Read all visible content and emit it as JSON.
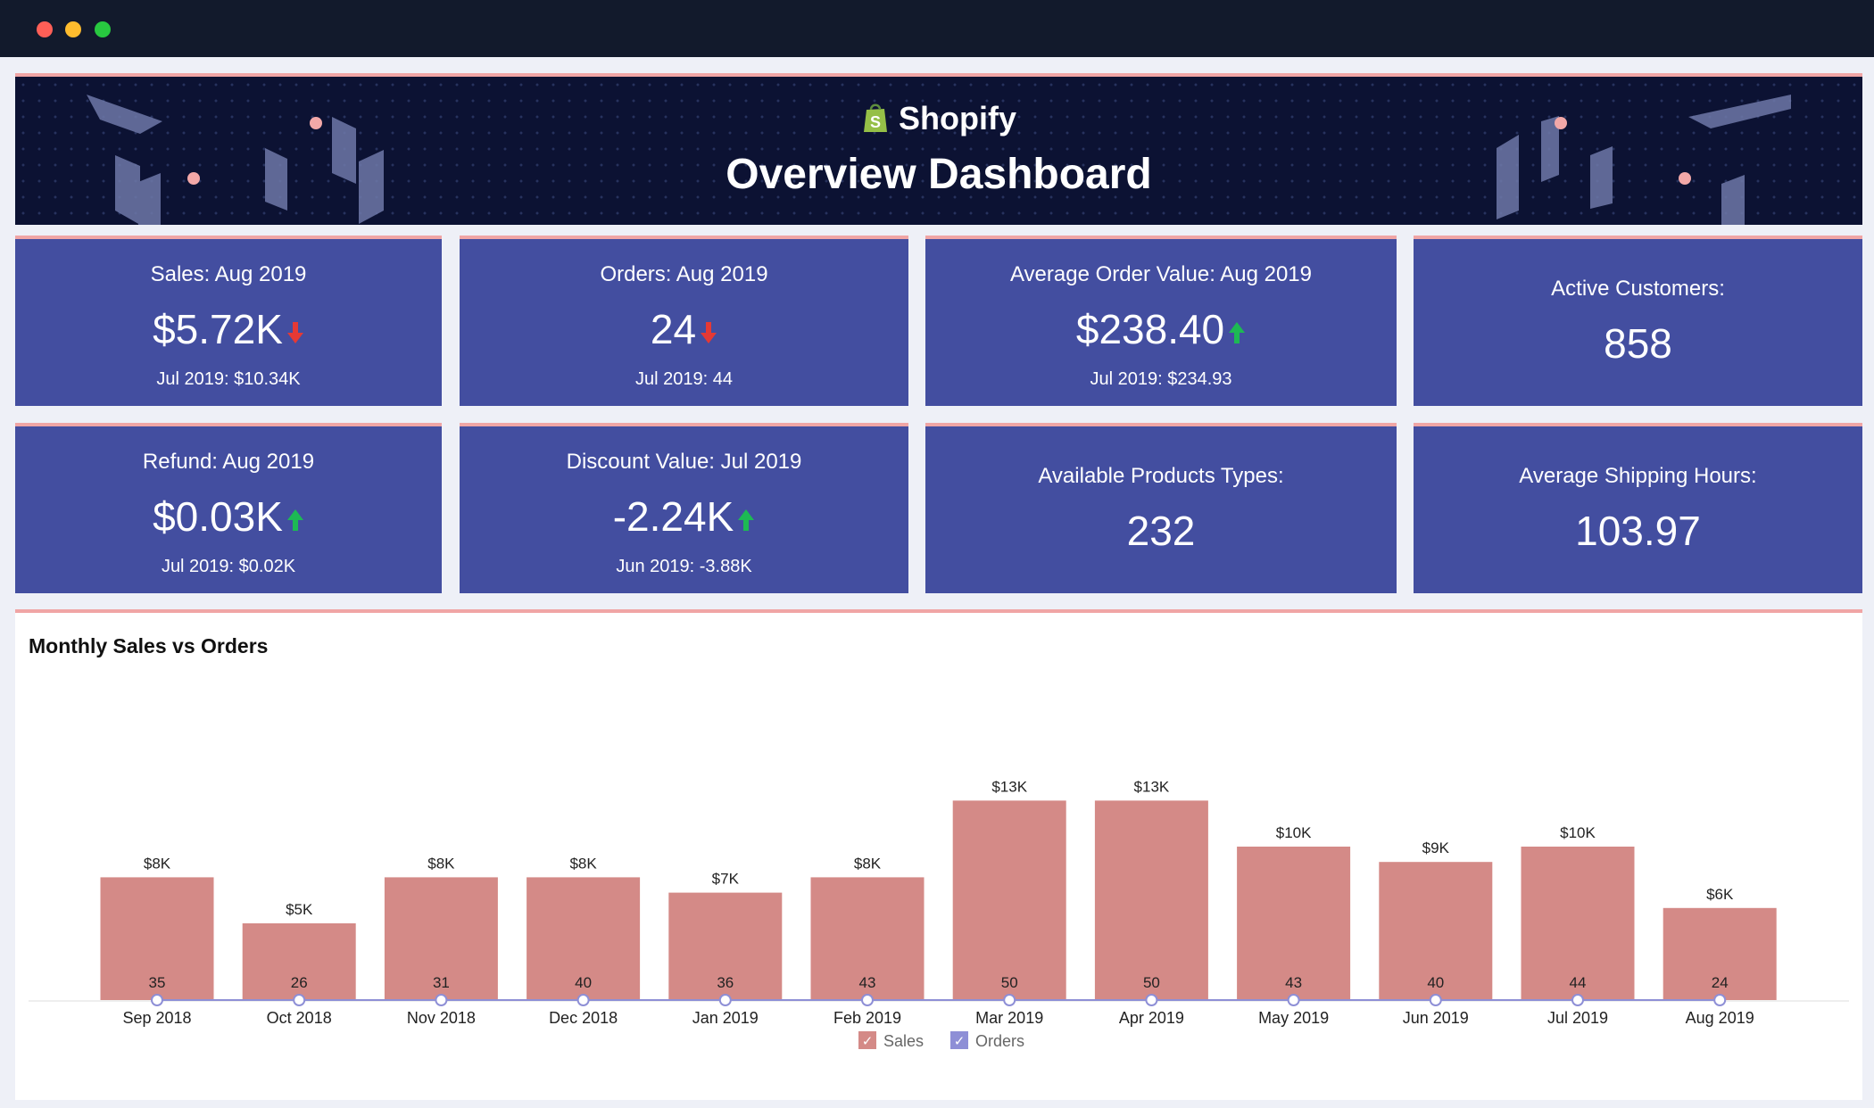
{
  "window": {
    "controls": [
      {
        "name": "close-dot",
        "color": "#fe5f57"
      },
      {
        "name": "minimize-dot",
        "color": "#febc2e"
      },
      {
        "name": "maximize-dot",
        "color": "#28c840"
      }
    ]
  },
  "header": {
    "brand": "Shopify",
    "brand_icon": "shopify-bag-icon",
    "title": "Overview Dashboard"
  },
  "kpis": [
    {
      "title": "Sales: Aug 2019",
      "value": "$5.72K",
      "trend": "down",
      "compare": "Jul 2019: $10.34K"
    },
    {
      "title": "Orders: Aug 2019",
      "value": "24",
      "trend": "down",
      "compare": "Jul 2019: 44"
    },
    {
      "title": "Average Order Value: Aug 2019",
      "value": "$238.40",
      "trend": "up",
      "compare": "Jul 2019: $234.93"
    },
    {
      "title": "Active Customers:",
      "value": "858"
    },
    {
      "title": "Refund: Aug 2019",
      "value": "$0.03K",
      "trend": "up",
      "compare": "Jul 2019: $0.02K"
    },
    {
      "title": "Discount Value: Jul 2019",
      "value": "-2.24K",
      "trend": "up",
      "compare": "Jun 2019: -3.88K"
    },
    {
      "title": "Available Products Types:",
      "value": "232"
    },
    {
      "title": "Average Shipping Hours:",
      "value": "103.97"
    }
  ],
  "colors": {
    "card_bg": "#434ea0",
    "accent_border": "#f0a5a5",
    "trend_up": "#1db954",
    "trend_down": "#e53935",
    "sales_bar": "#d48a87",
    "orders_line": "#8e8fd6"
  },
  "chart": {
    "title": "Monthly Sales vs Orders"
  },
  "chart_data": {
    "type": "bar",
    "categories": [
      "Sep 2018",
      "Oct 2018",
      "Nov 2018",
      "Dec 2018",
      "Jan 2019",
      "Feb 2019",
      "Mar 2019",
      "Apr 2019",
      "May 2019",
      "Jun 2019",
      "Jul 2019",
      "Aug 2019"
    ],
    "series": [
      {
        "name": "Sales",
        "type": "bar",
        "values": [
          8000,
          5000,
          8000,
          8000,
          7000,
          8000,
          13000,
          13000,
          10000,
          9000,
          10000,
          6000
        ],
        "data_labels": [
          "$8K",
          "$5K",
          "$8K",
          "$8K",
          "$7K",
          "$8K",
          "$13K",
          "$13K",
          "$10K",
          "$9K",
          "$10K",
          "$6K"
        ]
      },
      {
        "name": "Orders",
        "type": "line",
        "values": [
          35,
          26,
          31,
          40,
          36,
          43,
          50,
          50,
          43,
          40,
          44,
          24
        ]
      }
    ],
    "legend": {
      "position": "bottom-center",
      "items": [
        "Sales",
        "Orders"
      ]
    },
    "grid": false
  }
}
